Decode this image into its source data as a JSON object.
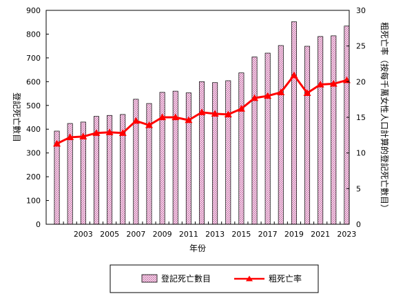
{
  "chart_data": {
    "type": "bar",
    "x": [
      2001,
      2002,
      2003,
      2004,
      2005,
      2006,
      2007,
      2008,
      2009,
      2010,
      2011,
      2012,
      2013,
      2014,
      2015,
      2016,
      2017,
      2018,
      2019,
      2020,
      2021,
      2022,
      2023
    ],
    "x_tick_labels": [
      "2003",
      "2005",
      "2007",
      "2009",
      "2011",
      "2013",
      "2015",
      "2017",
      "2019",
      "2021",
      "2023"
    ],
    "x_tick_values": [
      2003,
      2005,
      2007,
      2009,
      2011,
      2013,
      2015,
      2017,
      2019,
      2021,
      2023
    ],
    "xlabel": "年份",
    "ylabel_left": "登記死亡數目",
    "ylabel_right": "粗死亡率（按每千萬女性人口計算的登記死亡數目）",
    "ylim_left": [
      0,
      900
    ],
    "yticks_left": [
      0,
      100,
      200,
      300,
      400,
      500,
      600,
      700,
      800,
      900
    ],
    "ylim_right": [
      0,
      30
    ],
    "yticks_right": [
      0,
      5,
      10,
      15,
      20,
      25,
      30
    ],
    "grid": false,
    "legend_position": "bottom",
    "series": [
      {
        "name": "登記死亡數目",
        "type": "bar",
        "axis": "left",
        "color": "#f2c6e0",
        "values": [
          392,
          424,
          430,
          454,
          458,
          462,
          526,
          508,
          555,
          560,
          553,
          600,
          596,
          604,
          637,
          704,
          720,
          752,
          852,
          749,
          790,
          793,
          834
        ]
      },
      {
        "name": "粗死亡率",
        "type": "line",
        "axis": "right",
        "color": "#ff0000",
        "values": [
          11.3,
          12.2,
          12.3,
          12.8,
          12.9,
          12.8,
          14.5,
          13.9,
          15.0,
          15.0,
          14.6,
          15.7,
          15.5,
          15.4,
          16.2,
          17.7,
          18.0,
          18.5,
          20.9,
          18.4,
          19.6,
          19.7,
          20.2
        ]
      }
    ]
  }
}
